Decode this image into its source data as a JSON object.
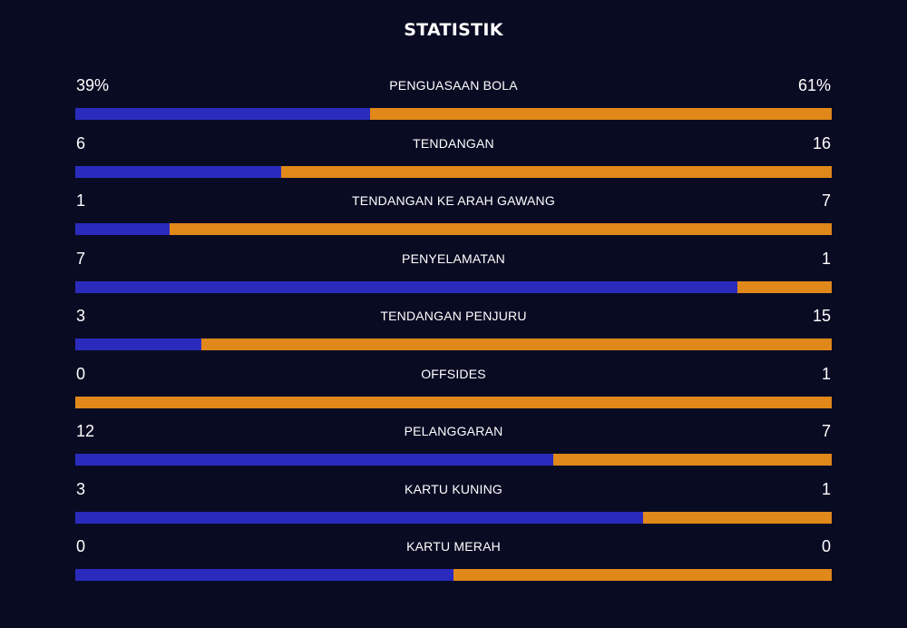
{
  "title": "STATISTIK",
  "colors": {
    "background": "#090b23",
    "home": "#2a2bbd",
    "away": "#e0881a",
    "text": "#ffffff"
  },
  "stats": [
    {
      "label": "PENGUASAAN BOLA",
      "home": "39%",
      "away": "61%",
      "home_value": 39,
      "away_value": 61
    },
    {
      "label": "TENDANGAN",
      "home": "6",
      "away": "16",
      "home_value": 6,
      "away_value": 16
    },
    {
      "label": "TENDANGAN KE ARAH GAWANG",
      "home": "1",
      "away": "7",
      "home_value": 1,
      "away_value": 7
    },
    {
      "label": "PENYELAMATAN",
      "home": "7",
      "away": "1",
      "home_value": 7,
      "away_value": 1
    },
    {
      "label": "TENDANGAN PENJURU",
      "home": "3",
      "away": "15",
      "home_value": 3,
      "away_value": 15
    },
    {
      "label": "OFFSIDES",
      "home": "0",
      "away": "1",
      "home_value": 0,
      "away_value": 1
    },
    {
      "label": "PELANGGARAN",
      "home": "12",
      "away": "7",
      "home_value": 12,
      "away_value": 7
    },
    {
      "label": "KARTU KUNING",
      "home": "3",
      "away": "1",
      "home_value": 3,
      "away_value": 1
    },
    {
      "label": "KARTU MERAH",
      "home": "0",
      "away": "0",
      "home_value": 0,
      "away_value": 0
    }
  ],
  "chart_data": {
    "type": "bar",
    "title": "STATISTIK",
    "categories": [
      "PENGUASAAN BOLA",
      "TENDANGAN",
      "TENDANGAN KE ARAH GAWANG",
      "PENYELAMATAN",
      "TENDANGAN PENJURU",
      "OFFSIDES",
      "PELANGGARAN",
      "KARTU KUNING",
      "KARTU MERAH"
    ],
    "series": [
      {
        "values": [
          39,
          6,
          1,
          7,
          3,
          0,
          12,
          3,
          0
        ]
      },
      {
        "values": [
          61,
          16,
          7,
          1,
          15,
          1,
          7,
          1,
          0
        ]
      }
    ]
  }
}
